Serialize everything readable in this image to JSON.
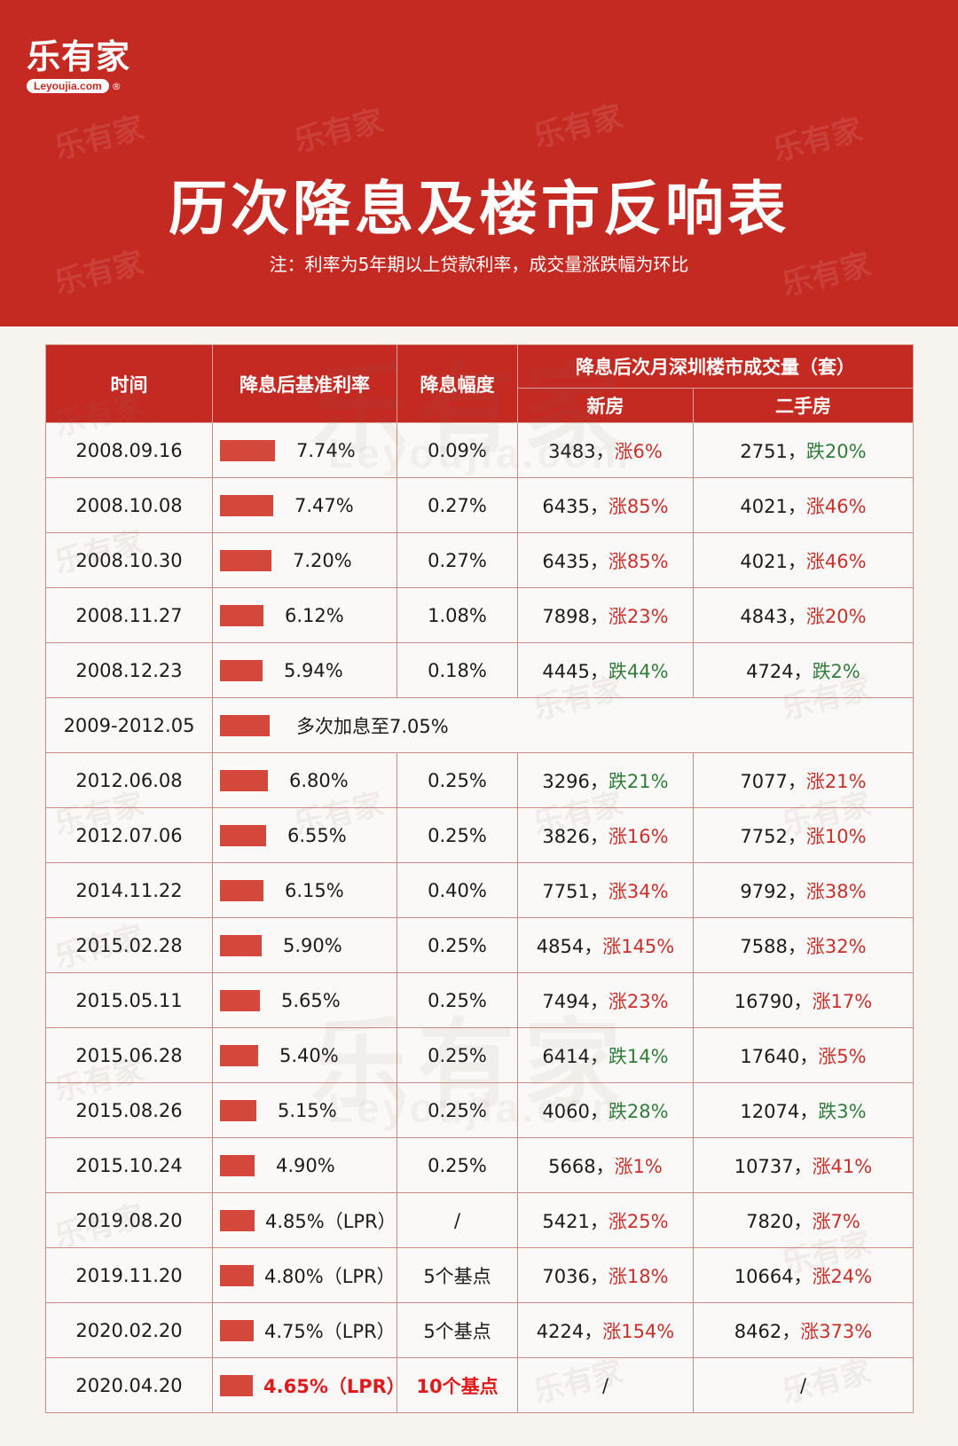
{
  "brand": {
    "name": "乐有家",
    "site": "Leyoujia.com",
    "reg": "®"
  },
  "header": {
    "title": "历次降息及楼市反响表",
    "note": "注：利率为5年期以上贷款利率，成交量涨跌幅为环比"
  },
  "watermark": {
    "text": "乐有家",
    "site": "Leyoujia.com"
  },
  "table": {
    "columns": {
      "time": "时间",
      "rate": "降息后基准利率",
      "cut": "降息幅度",
      "volume_group": "降息后次月深圳楼市成交量（套）",
      "new": "新房",
      "second": "二手房"
    },
    "rows": [
      {
        "time": "2008.09.16",
        "rate": "7.74%",
        "bar": 0.774,
        "cut": "0.09%",
        "new_num": "3483，",
        "new_chg": "涨6%",
        "new_dir": "up",
        "sec_num": "2751，",
        "sec_chg": "跌20%",
        "sec_dir": "down"
      },
      {
        "time": "2008.10.08",
        "rate": "7.47%",
        "bar": 0.747,
        "cut": "0.27%",
        "new_num": "6435，",
        "new_chg": "涨85%",
        "new_dir": "up",
        "sec_num": "4021，",
        "sec_chg": "涨46%",
        "sec_dir": "up"
      },
      {
        "time": "2008.10.30",
        "rate": "7.20%",
        "bar": 0.72,
        "cut": "0.27%",
        "new_num": "6435，",
        "new_chg": "涨85%",
        "new_dir": "up",
        "sec_num": "4021，",
        "sec_chg": "涨46%",
        "sec_dir": "up"
      },
      {
        "time": "2008.11.27",
        "rate": "6.12%",
        "bar": 0.612,
        "cut": "1.08%",
        "new_num": "7898，",
        "new_chg": "涨23%",
        "new_dir": "up",
        "sec_num": "4843，",
        "sec_chg": "涨20%",
        "sec_dir": "up"
      },
      {
        "time": "2008.12.23",
        "rate": "5.94%",
        "bar": 0.594,
        "cut": "0.18%",
        "new_num": "4445，",
        "new_chg": "跌44%",
        "new_dir": "down",
        "sec_num": "4724，",
        "sec_chg": "跌2%",
        "sec_dir": "down"
      },
      {
        "time": "2009-2012.05",
        "merged": "多次加息至7.05%",
        "bar": 0.705
      },
      {
        "time": "2012.06.08",
        "rate": "6.80%",
        "bar": 0.68,
        "cut": "0.25%",
        "new_num": "3296，",
        "new_chg": "跌21%",
        "new_dir": "down",
        "sec_num": "7077，",
        "sec_chg": "涨21%",
        "sec_dir": "up"
      },
      {
        "time": "2012.07.06",
        "rate": "6.55%",
        "bar": 0.655,
        "cut": "0.25%",
        "new_num": "3826，",
        "new_chg": "涨16%",
        "new_dir": "up",
        "sec_num": "7752，",
        "sec_chg": "涨10%",
        "sec_dir": "up"
      },
      {
        "time": "2014.11.22",
        "rate": "6.15%",
        "bar": 0.615,
        "cut": "0.40%",
        "new_num": "7751，",
        "new_chg": "涨34%",
        "new_dir": "up",
        "sec_num": "9792，",
        "sec_chg": "涨38%",
        "sec_dir": "up"
      },
      {
        "time": "2015.02.28",
        "rate": "5.90%",
        "bar": 0.59,
        "cut": "0.25%",
        "new_num": "4854，",
        "new_chg": "涨145%",
        "new_dir": "up",
        "sec_num": "7588，",
        "sec_chg": "涨32%",
        "sec_dir": "up"
      },
      {
        "time": "2015.05.11",
        "rate": "5.65%",
        "bar": 0.565,
        "cut": "0.25%",
        "new_num": "7494，",
        "new_chg": "涨23%",
        "new_dir": "up",
        "sec_num": "16790，",
        "sec_chg": "涨17%",
        "sec_dir": "up"
      },
      {
        "time": "2015.06.28",
        "rate": "5.40%",
        "bar": 0.54,
        "cut": "0.25%",
        "new_num": "6414，",
        "new_chg": "跌14%",
        "new_dir": "down",
        "sec_num": "17640，",
        "sec_chg": "涨5%",
        "sec_dir": "up"
      },
      {
        "time": "2015.08.26",
        "rate": "5.15%",
        "bar": 0.515,
        "cut": "0.25%",
        "new_num": "4060，",
        "new_chg": "跌28%",
        "new_dir": "down",
        "sec_num": "12074，",
        "sec_chg": "跌3%",
        "sec_dir": "down"
      },
      {
        "time": "2015.10.24",
        "rate": "4.90%",
        "bar": 0.49,
        "cut": "0.25%",
        "new_num": "5668，",
        "new_chg": "涨1%",
        "new_dir": "up",
        "sec_num": "10737，",
        "sec_chg": "涨41%",
        "sec_dir": "up"
      },
      {
        "time": "2019.08.20",
        "rate": "4.85%（LPR）",
        "bar": 0.485,
        "cut": "/",
        "new_num": "5421，",
        "new_chg": "涨25%",
        "new_dir": "up",
        "sec_num": "7820，",
        "sec_chg": "涨7%",
        "sec_dir": "up"
      },
      {
        "time": "2019.11.20",
        "rate": "4.80%（LPR）",
        "bar": 0.48,
        "cut": "5个基点",
        "new_num": "7036，",
        "new_chg": "涨18%",
        "new_dir": "up",
        "sec_num": "10664，",
        "sec_chg": "涨24%",
        "sec_dir": "up"
      },
      {
        "time": "2020.02.20",
        "rate": "4.75%（LPR）",
        "bar": 0.475,
        "cut": "5个基点",
        "new_num": "4224，",
        "new_chg": "涨154%",
        "new_dir": "up",
        "sec_num": "8462，",
        "sec_chg": "涨373%",
        "sec_dir": "up"
      },
      {
        "time": "2020.04.20",
        "rate": "4.65%（LPR）",
        "bar": 0.465,
        "cut": "10个基点",
        "new_plain": "/",
        "sec_plain": "/",
        "highlight": true
      }
    ]
  }
}
